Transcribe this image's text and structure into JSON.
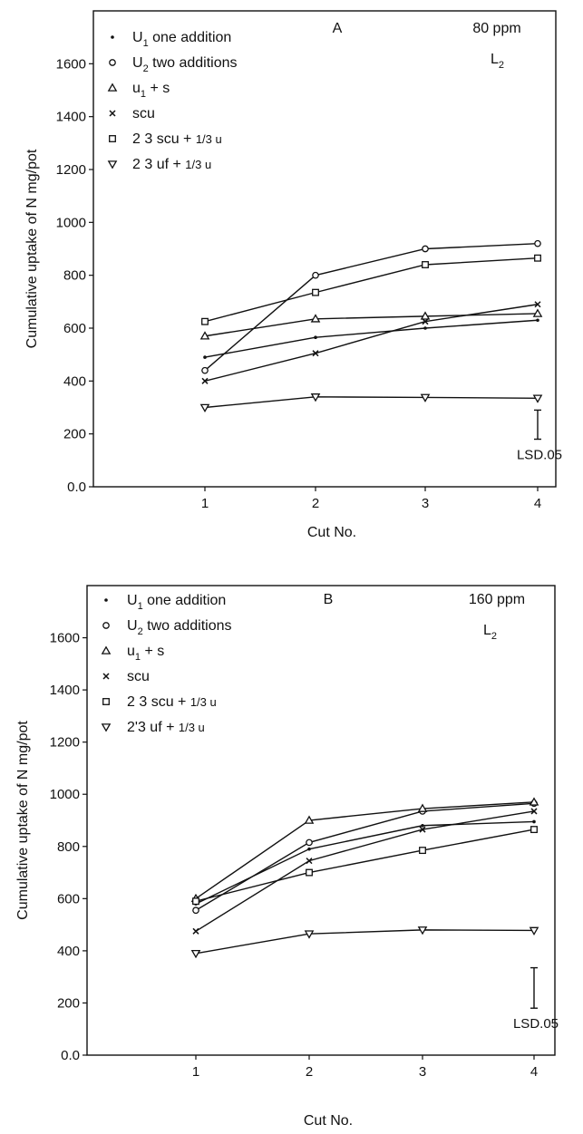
{
  "chart_data": [
    {
      "type": "line",
      "panel_letter": "A",
      "rate_label": "80 ppm",
      "soil_label": "L2",
      "xlabel": "Cut No.",
      "ylabel": "Cumulative uptake of N mg/pot",
      "x": [
        1,
        2,
        3,
        4
      ],
      "x_tick_labels": [
        "1",
        "2",
        "3",
        "4"
      ],
      "ylim": [
        0,
        1800
      ],
      "y_ticks": [
        0,
        200,
        400,
        600,
        800,
        1000,
        1200,
        1400,
        1600
      ],
      "y_tick_labels": [
        "0.0",
        "200",
        "400",
        "600",
        "800",
        "1000",
        "1200",
        "1400",
        "1600"
      ],
      "grid": false,
      "legend_position": "top-left",
      "lsd_label": "LSD.05",
      "lsd_range": [
        180,
        290
      ],
      "series": [
        {
          "name": "U1 one addition",
          "marker": "dot",
          "values": [
            490,
            565,
            600,
            630
          ]
        },
        {
          "name": "U2 two additions",
          "marker": "circle",
          "values": [
            440,
            800,
            900,
            920
          ]
        },
        {
          "name": "u1 + s",
          "marker": "triangle-up",
          "values": [
            570,
            635,
            645,
            655
          ]
        },
        {
          "name": "scu",
          "marker": "x",
          "values": [
            400,
            505,
            625,
            690
          ]
        },
        {
          "name": "2/3 scu + 1/3 u",
          "marker": "square",
          "values": [
            625,
            735,
            840,
            865
          ]
        },
        {
          "name": "2/3 uf + 1/3 u",
          "marker": "triangle-down",
          "values": [
            300,
            340,
            338,
            335
          ]
        }
      ]
    },
    {
      "type": "line",
      "panel_letter": "B",
      "rate_label": "160 ppm",
      "soil_label": "L2",
      "xlabel": "Cut No.",
      "ylabel": "Cumulative uptake of N mg/pot",
      "x": [
        1,
        2,
        3,
        4
      ],
      "x_tick_labels": [
        "1",
        "2",
        "3",
        "4"
      ],
      "ylim": [
        0,
        1800
      ],
      "y_ticks": [
        0,
        200,
        400,
        600,
        800,
        1000,
        1200,
        1400,
        1600
      ],
      "y_tick_labels": [
        "0.0",
        "200",
        "400",
        "600",
        "800",
        "1000",
        "1200",
        "1400",
        "1600"
      ],
      "grid": false,
      "legend_position": "top-left",
      "lsd_label": "LSD.05",
      "lsd_range": [
        180,
        335
      ],
      "series": [
        {
          "name": "U1 one addition",
          "marker": "dot",
          "values": [
            580,
            790,
            880,
            895
          ]
        },
        {
          "name": "U2 two additions",
          "marker": "circle",
          "values": [
            555,
            815,
            935,
            965
          ]
        },
        {
          "name": "u1 + s",
          "marker": "triangle-up",
          "values": [
            600,
            900,
            945,
            970
          ]
        },
        {
          "name": "scu",
          "marker": "x",
          "values": [
            475,
            745,
            865,
            935
          ]
        },
        {
          "name": "2/3 scu + 1/3 u",
          "marker": "square",
          "values": [
            590,
            700,
            785,
            865
          ]
        },
        {
          "name": "2/3 uf + 1/3 u",
          "marker": "triangle-down",
          "values": [
            390,
            465,
            480,
            478
          ]
        }
      ]
    }
  ],
  "legend": [
    {
      "main": "U",
      "sub": "1",
      "rest": " one addition"
    },
    {
      "main": "U",
      "sub": "2",
      "rest": " two additions"
    },
    {
      "main": "u",
      "sub": "1",
      "rest": " + s"
    },
    {
      "main": "scu",
      "sub": "",
      "rest": ""
    },
    {
      "main": "2 3 scu + ",
      "sub": "",
      "rest": "1/3 u"
    },
    {
      "main": "2 3 uf + ",
      "sub": "",
      "rest": "1/3 u"
    }
  ],
  "legend_b": [
    {
      "main": "U",
      "sub": "1",
      "rest": " one addition"
    },
    {
      "main": "U",
      "sub": "2",
      "rest": " two additions"
    },
    {
      "main": "u",
      "sub": "1",
      "rest": " + s"
    },
    {
      "main": "scu",
      "sub": "",
      "rest": ""
    },
    {
      "main": "2 3 scu + ",
      "sub": "",
      "rest": "1/3 u"
    },
    {
      "main": "2'3 uf + ",
      "sub": "",
      "rest": "1/3 u"
    }
  ],
  "soil_main": "L",
  "soil_sub": "2"
}
